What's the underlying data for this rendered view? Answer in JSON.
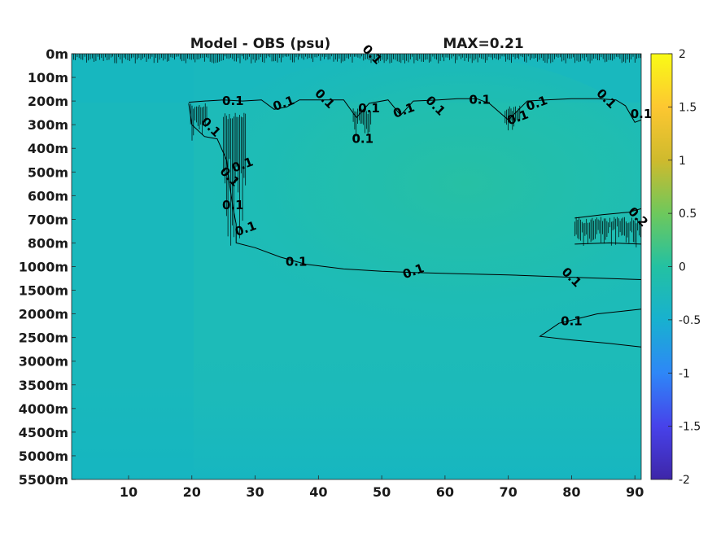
{
  "chart_data": {
    "type": "heatmap",
    "title": "Model - OBS (psu)",
    "max_label": "MAX=0.21",
    "x": {
      "ticks": [
        10,
        20,
        30,
        40,
        50,
        60,
        70,
        80,
        90
      ],
      "range": [
        1,
        91
      ]
    },
    "y": {
      "tick_labels": [
        "0m",
        "100m",
        "200m",
        "300m",
        "400m",
        "500m",
        "600m",
        "700m",
        "800m",
        "1000m",
        "1500m",
        "2000m",
        "2500m",
        "3000m",
        "3500m",
        "4000m",
        "4500m",
        "5000m",
        "5500m"
      ],
      "reversed": true
    },
    "colorbar": {
      "ticks": [
        2,
        1.5,
        1,
        0.5,
        0,
        -0.5,
        -1,
        -1.5,
        -2
      ],
      "tick_labels": [
        "2",
        "1.5",
        "1",
        "0.5",
        "0",
        "-0.5",
        "-1",
        "-1.5",
        "-2"
      ],
      "range": [
        -2,
        2
      ],
      "colormap": "parula",
      "colors": [
        "#3e26a8",
        "#4742ea",
        "#2e87f7",
        "#18b1cf",
        "#23c1a2",
        "#6ec85c",
        "#cfba2d",
        "#fdc731",
        "#f9fb15"
      ]
    },
    "contour_level": 0.1,
    "contour_labels": [
      {
        "text": "0.1",
        "x": 48.5,
        "y_level": 0.03
      },
      {
        "text": "0.1",
        "x": 26.5,
        "y_level": 2.0
      },
      {
        "text": "0.1",
        "x": 34.5,
        "y_level": 2.1
      },
      {
        "text": "0.1",
        "x": 41.0,
        "y_level": 1.9
      },
      {
        "text": "0.1",
        "x": 48.0,
        "y_level": 2.3
      },
      {
        "text": "0.1",
        "x": 53.5,
        "y_level": 2.4
      },
      {
        "text": "0.1",
        "x": 58.5,
        "y_level": 2.2
      },
      {
        "text": "0.1",
        "x": 65.5,
        "y_level": 1.95
      },
      {
        "text": "0.1",
        "x": 74.5,
        "y_level": 2.1
      },
      {
        "text": "0.1",
        "x": 85.5,
        "y_level": 1.9
      },
      {
        "text": "0.1",
        "x": 91.0,
        "y_level": 2.55
      },
      {
        "text": "0.1",
        "x": 71.5,
        "y_level": 2.7
      },
      {
        "text": "0.1",
        "x": 23.0,
        "y_level": 3.1
      },
      {
        "text": "0.1",
        "x": 47.0,
        "y_level": 3.6
      },
      {
        "text": "0.1",
        "x": 28.0,
        "y_level": 4.7
      },
      {
        "text": "0.1",
        "x": 26.0,
        "y_level": 5.2
      },
      {
        "text": "0.1",
        "x": 26.5,
        "y_level": 6.4
      },
      {
        "text": "0.1",
        "x": 28.5,
        "y_level": 7.4
      },
      {
        "text": "0.2",
        "x": 90.5,
        "y_level": 6.9
      },
      {
        "text": "0.1",
        "x": 36.5,
        "y_level": 8.8
      },
      {
        "text": "0.1",
        "x": 55.0,
        "y_level": 9.2
      },
      {
        "text": "0.1",
        "x": 80.0,
        "y_level": 9.45
      },
      {
        "text": "0.1",
        "x": 80.0,
        "y_level": 11.3
      }
    ],
    "contours": [
      {
        "name": "upper-contour",
        "points": [
          [
            19.5,
            2.05
          ],
          [
            22,
            2.0
          ],
          [
            25,
            1.95
          ],
          [
            28,
            2.0
          ],
          [
            31,
            1.95
          ],
          [
            33,
            2.35
          ],
          [
            35,
            2.25
          ],
          [
            37,
            1.95
          ],
          [
            40,
            1.95
          ],
          [
            44,
            1.95
          ],
          [
            46,
            2.7
          ],
          [
            48,
            2.1
          ],
          [
            51,
            1.95
          ],
          [
            53,
            2.6
          ],
          [
            55,
            2.0
          ],
          [
            59,
            1.95
          ],
          [
            62,
            1.9
          ],
          [
            65,
            1.9
          ],
          [
            67,
            2.1
          ],
          [
            70,
            2.8
          ],
          [
            73,
            2.0
          ],
          [
            76,
            1.95
          ],
          [
            80,
            1.9
          ],
          [
            84,
            1.9
          ],
          [
            87,
            1.95
          ],
          [
            88.5,
            2.2
          ],
          [
            90,
            2.9
          ],
          [
            91,
            2.8
          ]
        ]
      },
      {
        "name": "left-wall-contour",
        "points": [
          [
            19.5,
            2.1
          ],
          [
            20,
            3.0
          ],
          [
            22,
            3.5
          ],
          [
            24,
            3.6
          ],
          [
            25.5,
            4.5
          ],
          [
            26,
            5.6
          ],
          [
            26.5,
            6.5
          ],
          [
            27,
            7.2
          ],
          [
            27,
            8.0
          ],
          [
            30,
            8.2
          ],
          [
            34,
            8.6
          ],
          [
            38,
            8.9
          ],
          [
            44,
            9.1
          ],
          [
            50,
            9.2
          ],
          [
            55,
            9.25
          ],
          [
            62,
            9.3
          ],
          [
            70,
            9.35
          ],
          [
            80,
            9.45
          ],
          [
            91,
            9.55
          ]
        ]
      },
      {
        "name": "right-box-contour",
        "points": [
          [
            80.5,
            6.95
          ],
          [
            85,
            6.8
          ],
          [
            89,
            6.7
          ],
          [
            91,
            6.55
          ]
        ]
      },
      {
        "name": "right-box-bottom",
        "points": [
          [
            80.5,
            8.05
          ],
          [
            86,
            8.0
          ],
          [
            91,
            8.05
          ]
        ]
      },
      {
        "name": "deep-wedge-contour",
        "points": [
          [
            91,
            10.8
          ],
          [
            84,
            11.0
          ],
          [
            78,
            11.4
          ],
          [
            75,
            11.95
          ],
          [
            80,
            12.1
          ],
          [
            86,
            12.25
          ],
          [
            91,
            12.4
          ]
        ]
      }
    ],
    "field_value_range": [
      -0.1,
      0.21
    ]
  }
}
